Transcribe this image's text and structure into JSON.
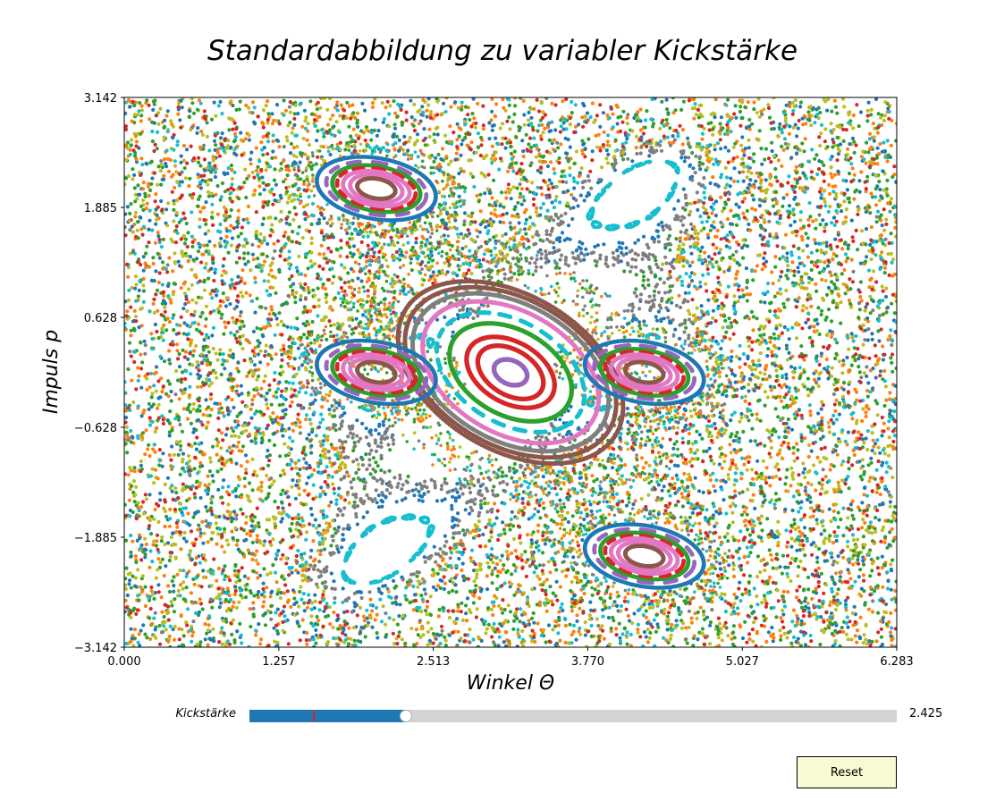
{
  "colors": {
    "blue": "#1f77b4",
    "orange": "#ff7f0e",
    "green": "#2ca02c",
    "red": "#d62728",
    "purple": "#9467bd",
    "brown": "#8c564b",
    "pink": "#e377c2",
    "gray": "#7f7f7f",
    "olive": "#bcbd22",
    "cyan": "#17becf",
    "slider_fill": "#1f77b4",
    "slider_track": "#d3d3d3",
    "slider_init_marker": "#d62728",
    "button_bg": "#fafad2"
  },
  "chart_data": {
    "type": "scatter",
    "title": "Standardabbildung zu variabler Kickstärke",
    "xlabel": "Winkel Θ",
    "ylabel": "Impuls p",
    "xlim": [
      0.0,
      6.283
    ],
    "ylim": [
      -3.142,
      3.142
    ],
    "x_ticks": [
      "0.000",
      "1.257",
      "2.513",
      "3.770",
      "5.027",
      "6.283"
    ],
    "y_ticks": [
      "3.142",
      "1.885",
      "0.628",
      "−0.628",
      "−1.885",
      "−3.142"
    ],
    "x_tick_values": [
      0.0,
      1.257,
      2.513,
      3.77,
      5.027,
      6.283
    ],
    "y_tick_values": [
      3.142,
      1.885,
      0.628,
      -0.628,
      -1.885,
      -3.142
    ],
    "kick_strength": 2.425,
    "description_of_series": "Poincaré section of the Chirikov standard map: one orbit per color (tab10 cycle), chaotic sea plus regular islands",
    "central_island": {
      "center": [
        3.142,
        0.0
      ],
      "orbits": [
        {
          "color": "purple",
          "radii": [
            0.16,
            0.12
          ]
        },
        {
          "color": "red",
          "radii": [
            0.34,
            0.22
          ]
        },
        {
          "color": "red",
          "radii": [
            0.45,
            0.3
          ]
        },
        {
          "color": "green",
          "radii": [
            0.62,
            0.42
          ]
        },
        {
          "color": "cyan",
          "radii": [
            0.76,
            0.5
          ],
          "dashed": true
        },
        {
          "color": "pink",
          "radii": [
            0.9,
            0.6
          ]
        },
        {
          "color": "gray",
          "radii": [
            1.0,
            0.67
          ]
        },
        {
          "color": "brown",
          "radii": [
            1.08,
            0.72
          ]
        },
        {
          "color": "brown",
          "radii": [
            1.16,
            0.76
          ]
        }
      ]
    },
    "period4_islands": {
      "centers": [
        [
          2.05,
          2.1
        ],
        [
          2.05,
          0.0
        ],
        [
          4.23,
          0.0
        ],
        [
          4.23,
          -2.1
        ]
      ],
      "orbits": [
        {
          "color": "brown",
          "radii": [
            0.16,
            0.11
          ]
        },
        {
          "color": "pink",
          "radii": [
            0.22,
            0.15
          ]
        },
        {
          "color": "pink",
          "radii": [
            0.28,
            0.19
          ]
        },
        {
          "color": "red",
          "radii": [
            0.33,
            0.22
          ],
          "dashed": true
        },
        {
          "color": "green",
          "radii": [
            0.37,
            0.25
          ]
        },
        {
          "color": "purple",
          "radii": [
            0.42,
            0.29
          ],
          "dashed": true
        },
        {
          "color": "blue",
          "radii": [
            0.5,
            0.34
          ]
        }
      ]
    }
  },
  "slider": {
    "label": "Kickstärke",
    "value_text": "2.425",
    "value": 2.425,
    "min": 0.0,
    "max": 10.0,
    "initial": 1.0
  },
  "reset_button": {
    "label": "Reset"
  }
}
